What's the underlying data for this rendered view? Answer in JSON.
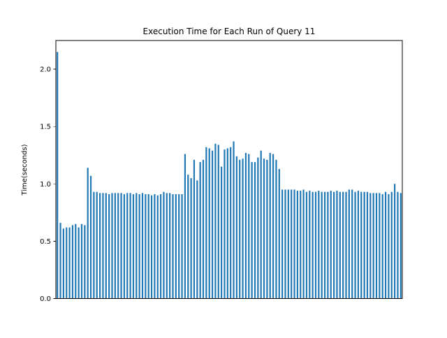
{
  "chart_data": {
    "type": "bar",
    "title": "Execution Time for Each Run of Query 11",
    "xlabel": "",
    "ylabel": "Time(seconds)",
    "ylim": [
      0,
      2.25
    ],
    "yticks": [
      0.0,
      0.5,
      1.0,
      1.5,
      2.0
    ],
    "ytick_labels": [
      "0.0",
      "0.5",
      "1.0",
      "1.5",
      "2.0"
    ],
    "grid": false,
    "legend": "none",
    "bar_color": "#1f77b4",
    "values": [
      2.15,
      0.66,
      0.61,
      0.62,
      0.62,
      0.64,
      0.65,
      0.62,
      0.65,
      0.64,
      1.14,
      1.07,
      0.93,
      0.93,
      0.92,
      0.92,
      0.92,
      0.91,
      0.92,
      0.92,
      0.92,
      0.92,
      0.91,
      0.92,
      0.92,
      0.91,
      0.92,
      0.91,
      0.92,
      0.91,
      0.91,
      0.9,
      0.91,
      0.9,
      0.91,
      0.93,
      0.92,
      0.92,
      0.91,
      0.91,
      0.91,
      0.91,
      1.26,
      1.08,
      1.05,
      1.21,
      1.03,
      1.19,
      1.21,
      1.32,
      1.31,
      1.29,
      1.35,
      1.34,
      1.15,
      1.3,
      1.31,
      1.32,
      1.37,
      1.24,
      1.21,
      1.22,
      1.27,
      1.26,
      1.19,
      1.19,
      1.23,
      1.29,
      1.22,
      1.21,
      1.27,
      1.26,
      1.21,
      1.13,
      0.95,
      0.95,
      0.95,
      0.95,
      0.95,
      0.94,
      0.94,
      0.95,
      0.93,
      0.94,
      0.93,
      0.93,
      0.94,
      0.93,
      0.93,
      0.93,
      0.94,
      0.93,
      0.94,
      0.93,
      0.93,
      0.93,
      0.95,
      0.95,
      0.93,
      0.94,
      0.93,
      0.93,
      0.93,
      0.92,
      0.92,
      0.92,
      0.92,
      0.91,
      0.93,
      0.91,
      0.93,
      1.0,
      0.93,
      0.92
    ]
  }
}
